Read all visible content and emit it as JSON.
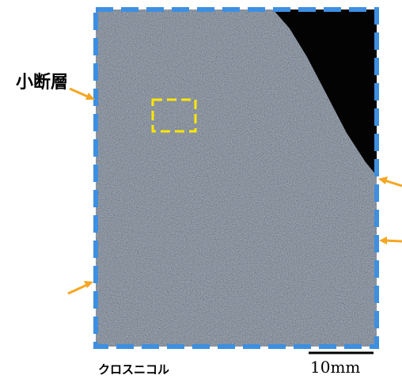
{
  "labels": {
    "fault": "小断層",
    "caption": "クロスニコル",
    "scale": "10mm"
  },
  "colors": {
    "frame_border": "#3d8fe0",
    "highlight_box": "#ffe600",
    "arrow": "#f5a623",
    "thin_section_base": "#2a3033",
    "dark_region": "#030303"
  }
}
